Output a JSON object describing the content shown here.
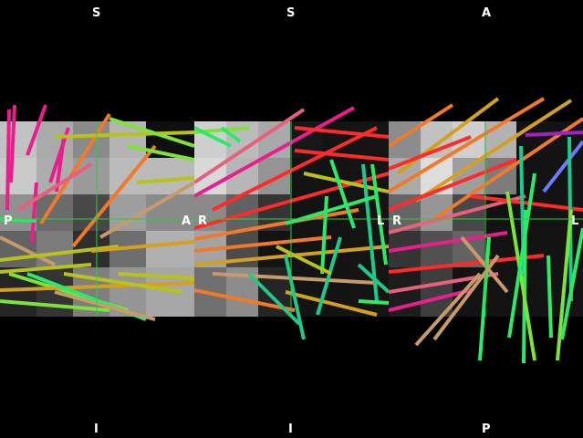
{
  "viewer": {
    "panels": [
      {
        "id": "sagittal",
        "top": "S",
        "bottom": "I",
        "left": "P",
        "right": "A"
      },
      {
        "id": "coronal",
        "top": "S",
        "bottom": "I",
        "left": "R",
        "right": "L"
      },
      {
        "id": "axial",
        "top": "A",
        "bottom": "P",
        "left": "R",
        "right": "L"
      }
    ],
    "crosshair_color": "#2ecc40",
    "tract_colors": [
      "#e91e8c",
      "#ff2a2a",
      "#f07a2a",
      "#d4a020",
      "#b7c31a",
      "#7de23a",
      "#2ee86a",
      "#1ec98a",
      "#c79a6a",
      "#6b7bff",
      "#a020c0"
    ]
  }
}
